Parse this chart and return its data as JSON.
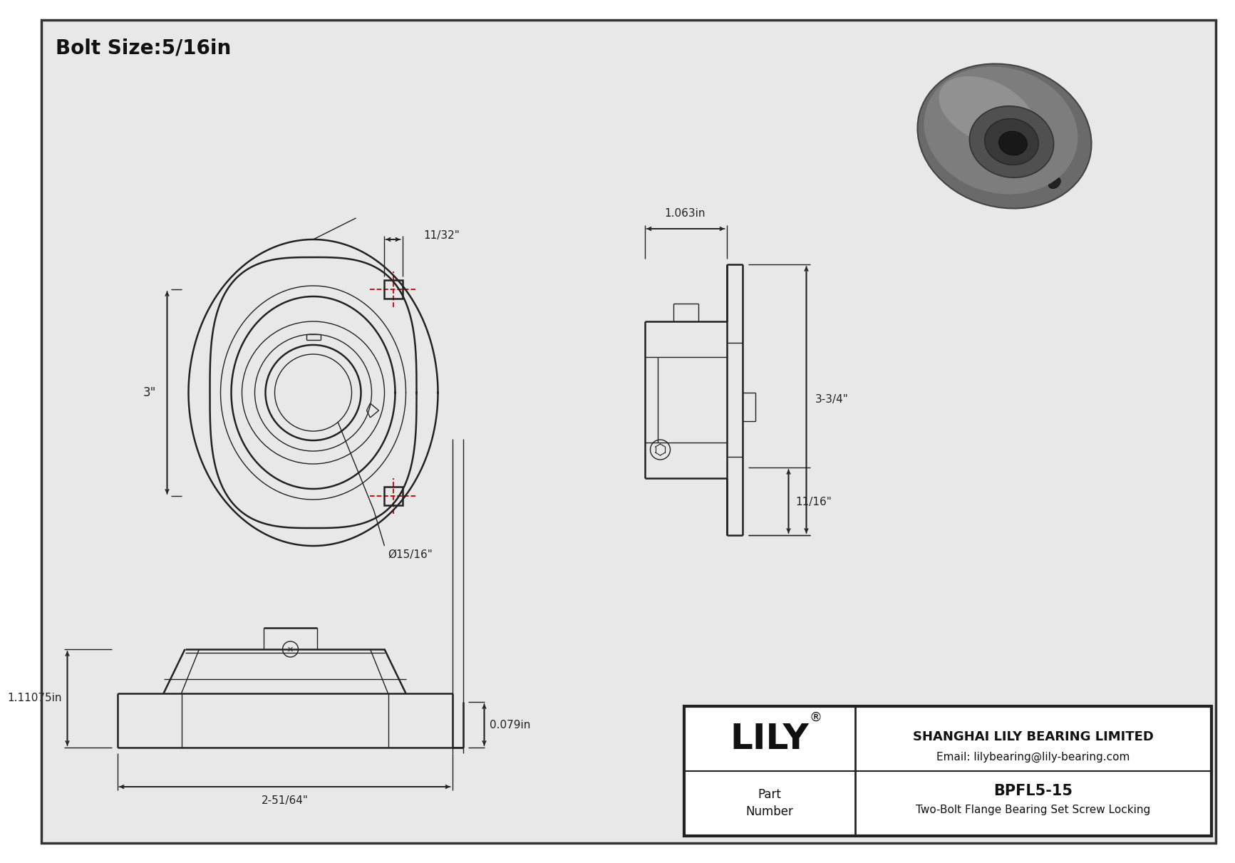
{
  "bg_color": "#ffffff",
  "inner_bg": "#e8e8e8",
  "border_color": "#333333",
  "line_color": "#222222",
  "dim_color": "#222222",
  "red_dash_color": "#cc0000",
  "title": "Bolt Size:5/16in",
  "title_fontsize": 20,
  "company_name": "SHANGHAI LILY BEARING LIMITED",
  "company_email": "Email: lilybearing@lily-bearing.com",
  "part_number_label": "Part\nNumber",
  "part_number": "BPFL5-15",
  "part_desc": "Two-Bolt Flange Bearing Set Screw Locking",
  "lily_brand": "LILY",
  "dim_11_32": "11/32\"",
  "dim_3in": "3\"",
  "dim_bolt": "Ø15/16\"",
  "dim_1063": "1.063in",
  "dim_334": "3-3/4\"",
  "dim_1116": "11/16\"",
  "dim_0079": "0.079in",
  "dim_11075": "1.11075in",
  "dim_251_64": "2-51/64\""
}
